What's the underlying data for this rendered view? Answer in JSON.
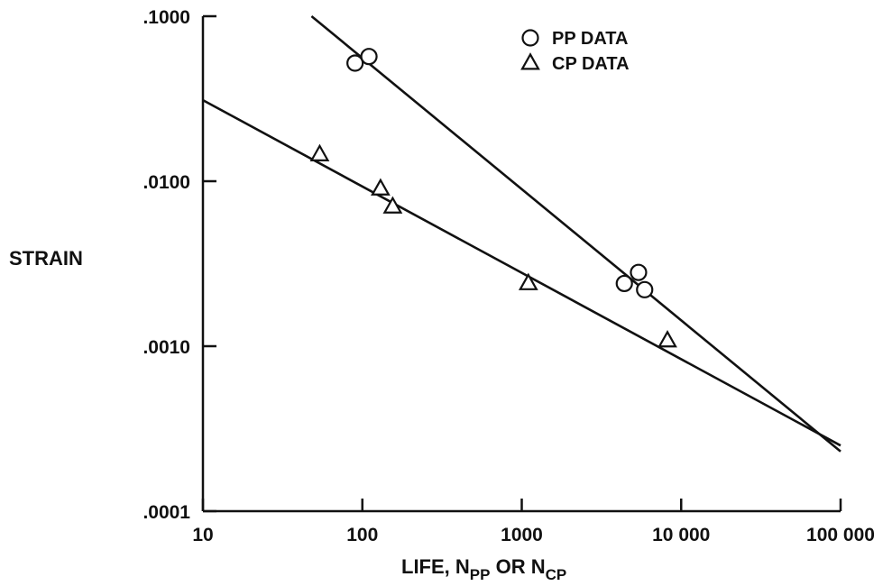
{
  "chart_data": {
    "type": "scatter",
    "title": "",
    "xscale": "log",
    "yscale": "log",
    "xlim": [
      10,
      100000
    ],
    "ylim": [
      0.0001,
      0.1
    ],
    "xticks": [
      10,
      100,
      1000,
      10000,
      100000
    ],
    "xtick_labels": [
      "10",
      "100",
      "1000",
      "10 000",
      "100 000"
    ],
    "yticks": [
      0.0001,
      0.001,
      0.01,
      0.1
    ],
    "ytick_labels": [
      ".0001",
      ".0010",
      ".0100",
      ".1000"
    ],
    "xlabel": {
      "prefix": "LIFE, N",
      "sub1": "PP",
      "middle": " OR N",
      "sub2": "CP"
    },
    "ylabel": "STRAIN",
    "legend_position": "top-center",
    "grid": false,
    "series": [
      {
        "name": "PP DATA",
        "marker": "circle",
        "points": [
          {
            "x": 90,
            "y": 0.052
          },
          {
            "x": 110,
            "y": 0.057
          },
          {
            "x": 4400,
            "y": 0.0024
          },
          {
            "x": 5400,
            "y": 0.0028
          },
          {
            "x": 5900,
            "y": 0.0022
          }
        ],
        "fit_line": [
          {
            "x": 48,
            "y": 0.1
          },
          {
            "x": 100000,
            "y": 0.00023
          }
        ]
      },
      {
        "name": "CP DATA",
        "marker": "triangle",
        "points": [
          {
            "x": 54,
            "y": 0.0145
          },
          {
            "x": 130,
            "y": 0.009
          },
          {
            "x": 155,
            "y": 0.007
          },
          {
            "x": 1100,
            "y": 0.0024
          },
          {
            "x": 8200,
            "y": 0.00108
          }
        ],
        "fit_line": [
          {
            "x": 10,
            "y": 0.031
          },
          {
            "x": 100000,
            "y": 0.00025
          }
        ]
      }
    ]
  }
}
